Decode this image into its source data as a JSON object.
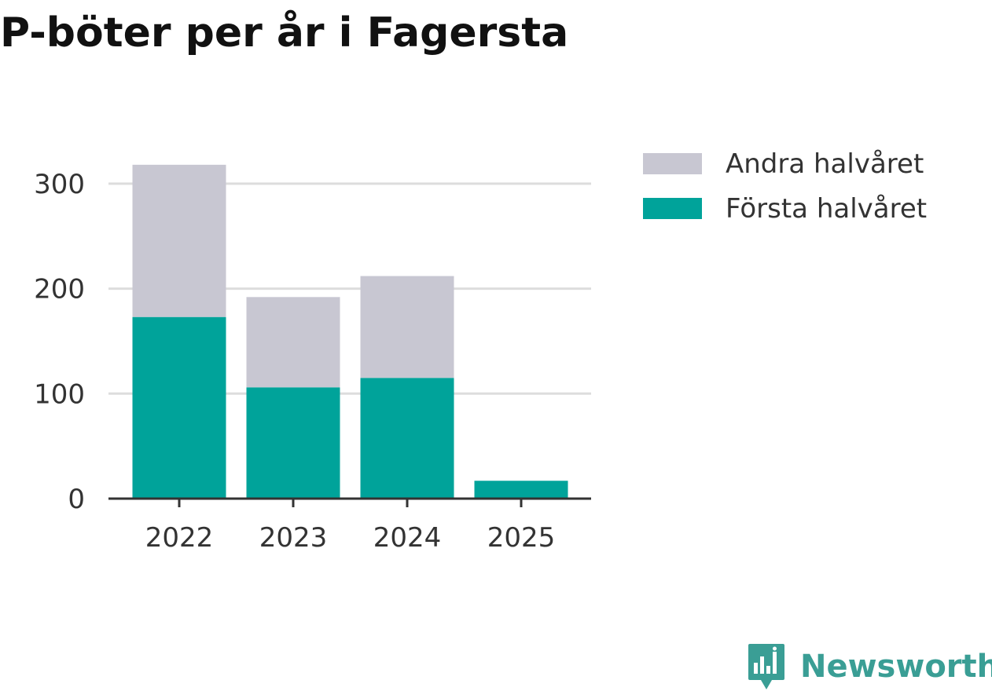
{
  "chart_data": {
    "type": "bar",
    "stacked": true,
    "title": "P-böter per år i Fagersta",
    "xlabel": "",
    "ylabel": "",
    "categories": [
      "2022",
      "2023",
      "2024",
      "2025"
    ],
    "series": [
      {
        "name": "Första halvåret",
        "color": "#00a39a",
        "values": [
          173,
          106,
          115,
          17
        ]
      },
      {
        "name": "Andra halvåret",
        "color": "#c8c7d2",
        "values": [
          145,
          86,
          97,
          0
        ]
      }
    ],
    "ylim": [
      0,
      330
    ],
    "yticks": [
      0,
      100,
      200,
      300
    ],
    "grid": true,
    "legend_position": "right",
    "legend_order": [
      "Andra halvåret",
      "Första halvåret"
    ]
  },
  "branding": {
    "name": "Newsworthy",
    "color": "#3a9e95"
  },
  "colors": {
    "grid": "#dddddd",
    "axis": "#333333",
    "text": "#333333"
  }
}
